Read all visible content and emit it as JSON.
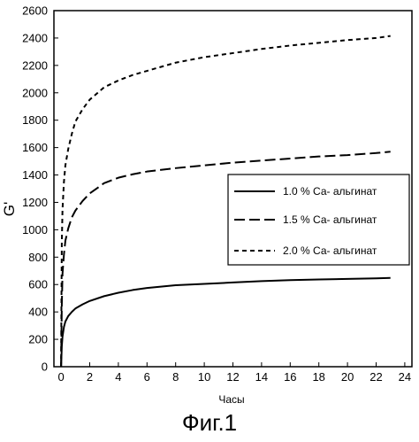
{
  "figure_caption": "Фиг.1",
  "chart_data": {
    "type": "line",
    "xlabel": "Часы",
    "ylabel": "G'",
    "xlim": [
      -0.5,
      24.5
    ],
    "ylim": [
      0,
      2600
    ],
    "x_ticks": [
      0,
      2,
      4,
      6,
      8,
      10,
      12,
      14,
      16,
      18,
      20,
      22,
      24
    ],
    "y_ticks": [
      0,
      200,
      400,
      600,
      800,
      1000,
      1200,
      1400,
      1600,
      1800,
      2000,
      2200,
      2400,
      2600
    ],
    "grid": false,
    "legend_position": "right-middle",
    "series": [
      {
        "name": "1.0 % Са- альгинат",
        "style": "solid",
        "x": [
          0,
          0.05,
          0.1,
          0.2,
          0.3,
          0.5,
          0.75,
          1,
          1.5,
          2,
          3,
          4,
          5,
          6,
          8,
          10,
          12,
          14,
          16,
          18,
          20,
          22,
          23
        ],
        "y": [
          0,
          150,
          220,
          290,
          330,
          370,
          400,
          425,
          455,
          480,
          515,
          540,
          560,
          575,
          595,
          605,
          615,
          625,
          632,
          637,
          641,
          645,
          648
        ]
      },
      {
        "name": "1.5 % Са- альгинат",
        "style": "long-dash",
        "x": [
          0,
          0.05,
          0.1,
          0.2,
          0.3,
          0.5,
          0.75,
          1,
          1.5,
          2,
          3,
          4,
          5,
          6,
          8,
          10,
          12,
          14,
          16,
          18,
          20,
          22,
          23
        ],
        "y": [
          0,
          450,
          680,
          820,
          920,
          1010,
          1090,
          1140,
          1210,
          1265,
          1340,
          1380,
          1405,
          1425,
          1450,
          1470,
          1490,
          1505,
          1520,
          1535,
          1545,
          1560,
          1570
        ]
      },
      {
        "name": "2.0 % Са- альгинат",
        "style": "short-dash",
        "x": [
          0,
          0.05,
          0.1,
          0.2,
          0.3,
          0.5,
          0.75,
          1,
          1.5,
          2,
          3,
          4,
          5,
          6,
          8,
          10,
          12,
          14,
          16,
          18,
          20,
          22,
          23
        ],
        "y": [
          0,
          900,
          1150,
          1350,
          1470,
          1590,
          1700,
          1790,
          1880,
          1950,
          2040,
          2090,
          2130,
          2160,
          2220,
          2260,
          2290,
          2320,
          2345,
          2365,
          2385,
          2400,
          2415
        ]
      }
    ]
  }
}
